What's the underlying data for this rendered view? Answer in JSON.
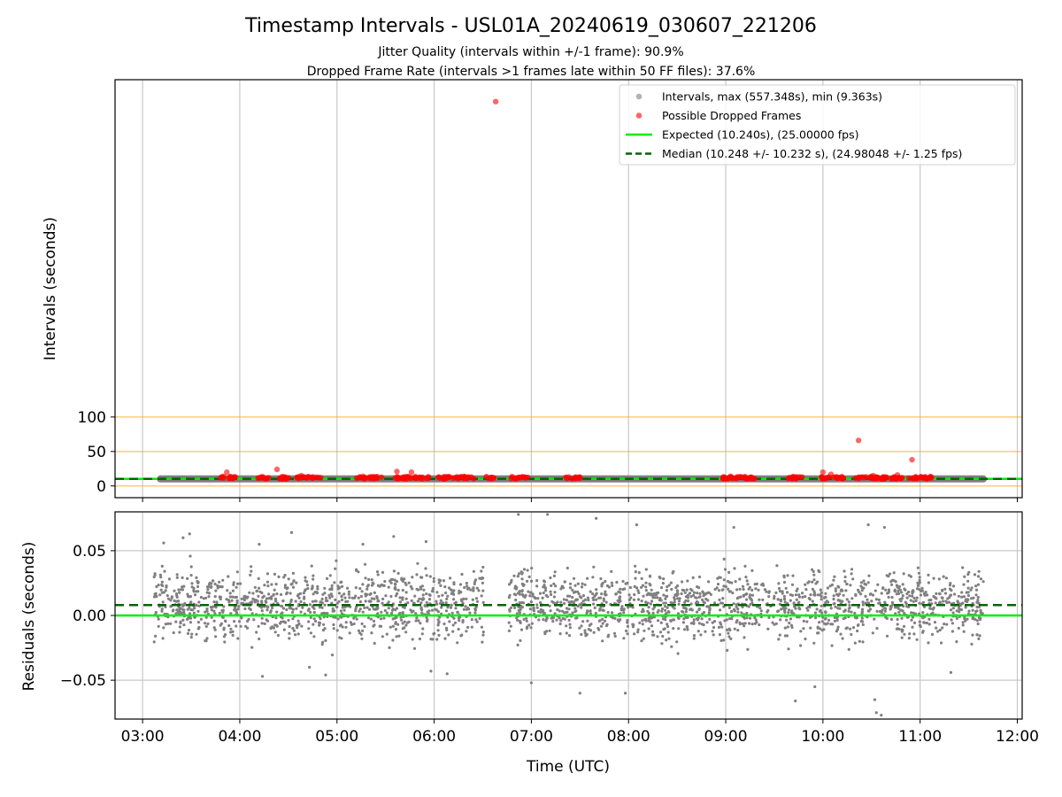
{
  "title": "Timestamp Intervals - USL01A_20240619_030607_221206",
  "subtitle1": "Jitter Quality (intervals within +/-1 frame): 90.9%",
  "subtitle2": "Dropped Frame Rate (intervals >1 frames late within 50 FF files): 37.6%",
  "colors": {
    "intervals": "#808080",
    "dropped": "#ff0000",
    "expected": "#00ee00",
    "median": "#006400",
    "threshold": "#ffa500",
    "grid": "#c8c8c8"
  },
  "chart_data": [
    {
      "type": "scatter",
      "xlabel": "",
      "ylabel": "Intervals (seconds)",
      "xlim": [
        "02:43",
        "12:03"
      ],
      "ylim": [
        -17,
        589
      ],
      "yticks": [
        0,
        50,
        100
      ],
      "xticks": [
        "03:00",
        "04:00",
        "05:00",
        "06:00",
        "07:00",
        "08:00",
        "09:00",
        "10:00",
        "11:00",
        "12:00"
      ],
      "grid": "x",
      "legend_position": "upper right",
      "threshold_lines": [
        0,
        50,
        100
      ],
      "expected": 10.24,
      "median": 10.248,
      "interval_band": {
        "start": "03:11",
        "end": "11:39",
        "value": 10.25
      },
      "legend": [
        {
          "label": "Intervals, max (557.348s), min (9.363s)",
          "marker": "dot",
          "color": "#808080"
        },
        {
          "label": "Possible Dropped Frames",
          "marker": "dot",
          "color": "#ff0000"
        },
        {
          "label": "Expected (10.240s), (25.00000 fps)",
          "marker": "line",
          "color": "#00ee00"
        },
        {
          "label": "Median (10.248 +/- 10.232 s), (24.98048 +/- 1.25 fps)",
          "marker": "dashed",
          "color": "#006400"
        }
      ],
      "series": [
        {
          "name": "Possible Dropped Frames",
          "points": [
            [
              "06:38",
              557.3
            ],
            [
              "10:22",
              66.0
            ],
            [
              "10:55",
              38.0
            ],
            [
              "04:23",
              24.0
            ],
            [
              "03:52",
              20.0
            ],
            [
              "05:37",
              21.0
            ],
            [
              "05:46",
              20.0
            ],
            [
              "10:00",
              20.0
            ],
            [
              "10:05",
              17.0
            ],
            [
              "04:38",
              15.0
            ],
            [
              "05:16",
              14.0
            ],
            [
              "06:03",
              13.0
            ],
            [
              "07:23",
              13.0
            ],
            [
              "09:03",
              14.0
            ],
            [
              "09:42",
              13.0
            ],
            [
              "10:31",
              15.0
            ],
            [
              "10:46",
              16.0
            ],
            [
              "05:42",
              13.0
            ],
            [
              "03:50",
              14.0
            ],
            [
              "04:12",
              12.0
            ]
          ],
          "clusters": [
            [
              "03:47",
              "03:58"
            ],
            [
              "04:10",
              "04:18"
            ],
            [
              "04:22",
              "04:32"
            ],
            [
              "04:35",
              "04:50"
            ],
            [
              "05:12",
              "05:28"
            ],
            [
              "05:35",
              "05:58"
            ],
            [
              "06:02",
              "06:25"
            ],
            [
              "06:32",
              "06:38"
            ],
            [
              "06:47",
              "06:58"
            ],
            [
              "07:21",
              "07:30"
            ],
            [
              "08:58",
              "09:20"
            ],
            [
              "09:38",
              "09:48"
            ],
            [
              "09:57",
              "10:13"
            ],
            [
              "10:20",
              "10:50"
            ],
            [
              "10:53",
              "11:08"
            ]
          ]
        }
      ]
    },
    {
      "type": "scatter",
      "xlabel": "Time (UTC)",
      "ylabel": "Residuals (seconds)",
      "xlim": [
        "02:43",
        "12:03"
      ],
      "ylim": [
        -0.08,
        0.08
      ],
      "yticks": [
        -0.05,
        0.0,
        0.05
      ],
      "ytick_labels": [
        "−0.05",
        "0.00",
        "0.05"
      ],
      "xticks": [
        "03:00",
        "04:00",
        "05:00",
        "06:00",
        "07:00",
        "08:00",
        "09:00",
        "10:00",
        "11:00",
        "12:00"
      ],
      "grid": "both",
      "expected_residual": 0.0,
      "median_residual": 0.008,
      "segments": [
        [
          "03:07",
          "06:31"
        ],
        [
          "06:46",
          "11:39"
        ]
      ],
      "residual_spread": 0.025,
      "outliers": [
        [
          "03:13",
          0.056
        ],
        [
          "03:25",
          0.06
        ],
        [
          "03:29",
          0.063
        ],
        [
          "04:12",
          0.055
        ],
        [
          "04:14",
          -0.047
        ],
        [
          "04:32",
          0.064
        ],
        [
          "04:43",
          -0.04
        ],
        [
          "04:53",
          -0.046
        ],
        [
          "05:16",
          0.055
        ],
        [
          "05:35",
          0.061
        ],
        [
          "05:55",
          0.057
        ],
        [
          "05:58",
          -0.043
        ],
        [
          "06:08",
          -0.045
        ],
        [
          "06:52",
          0.078
        ],
        [
          "07:00",
          -0.052
        ],
        [
          "07:10",
          0.078
        ],
        [
          "07:30",
          -0.06
        ],
        [
          "07:40",
          0.075
        ],
        [
          "07:58",
          -0.06
        ],
        [
          "08:05",
          0.07
        ],
        [
          "09:05",
          0.068
        ],
        [
          "09:43",
          -0.066
        ],
        [
          "09:55",
          -0.055
        ],
        [
          "10:28",
          0.07
        ],
        [
          "10:32",
          -0.065
        ],
        [
          "10:33",
          -0.075
        ],
        [
          "10:36",
          -0.077
        ],
        [
          "10:38",
          0.068
        ],
        [
          "11:19",
          -0.044
        ]
      ]
    }
  ]
}
